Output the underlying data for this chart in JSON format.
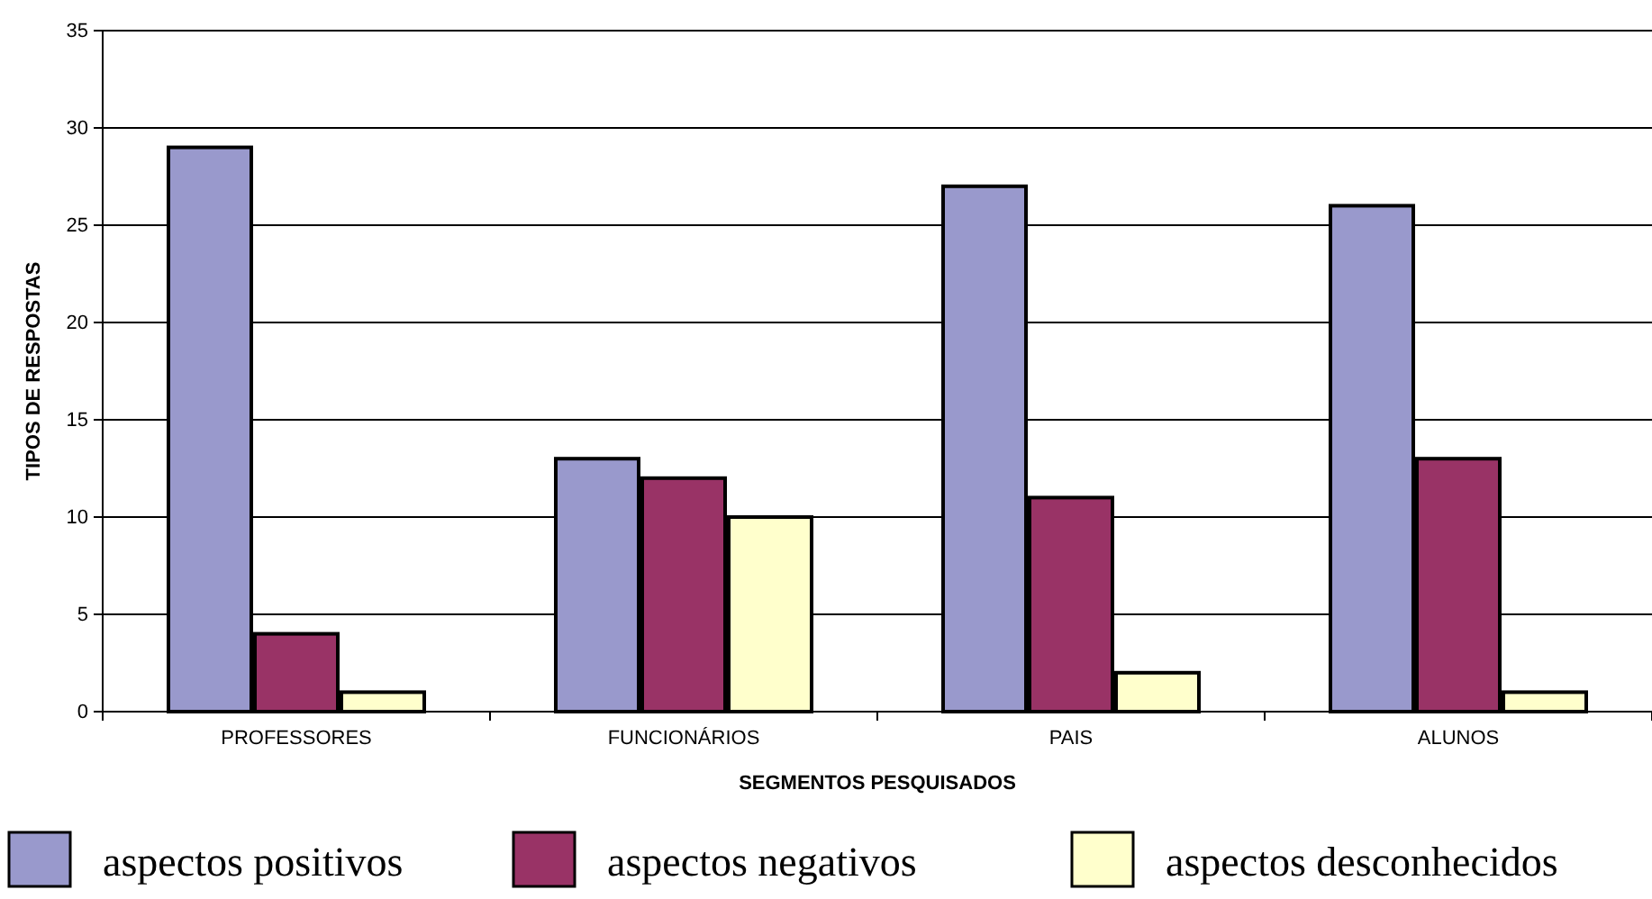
{
  "chart_data": {
    "type": "bar",
    "xlabel": "SEGMENTOS PESQUISADOS",
    "ylabel": "TIPOS DE RESPOSTAS",
    "categories": [
      "PROFESSORES",
      "FUNCIONÁRIOS",
      "PAIS",
      "ALUNOS"
    ],
    "series": [
      {
        "name": "aspectos positivos",
        "color": "#9999cc",
        "values": [
          29,
          13,
          27,
          26
        ]
      },
      {
        "name": "aspectos negativos",
        "color": "#993366",
        "values": [
          4,
          12,
          11,
          13
        ]
      },
      {
        "name": "aspectos desconhecidos",
        "color": "#ffffcc",
        "values": [
          1,
          10,
          2,
          1
        ]
      }
    ],
    "ylim": [
      0,
      35
    ],
    "yticks": [
      0,
      5,
      10,
      15,
      20,
      25,
      30,
      35
    ],
    "grid": "y",
    "legend": "bottom"
  }
}
